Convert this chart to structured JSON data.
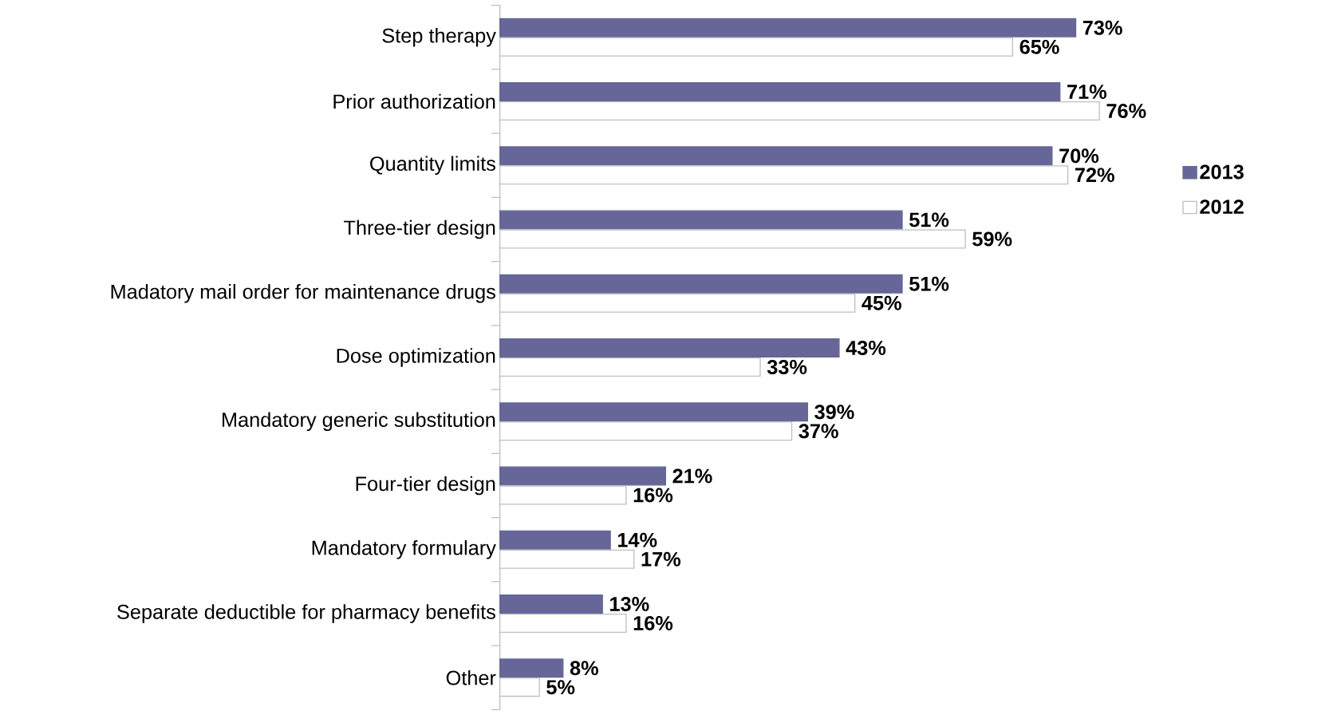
{
  "chart_data": {
    "type": "bar",
    "orientation": "horizontal",
    "categories": [
      "Step therapy",
      "Prior authorization",
      "Quantity limits",
      "Three-tier design",
      "Madatory mail order for maintenance drugs",
      "Dose optimization",
      "Mandatory generic substitution",
      "Four-tier design",
      "Mandatory formulary",
      "Separate deductible for pharmacy benefits",
      "Other"
    ],
    "series": [
      {
        "name": "2013",
        "color": "#666699",
        "values": [
          73,
          71,
          70,
          51,
          51,
          43,
          39,
          21,
          14,
          13,
          8
        ],
        "value_labels": [
          "73%",
          "71%",
          "70%",
          "51%",
          "51%",
          "43%",
          "39%",
          "21%",
          "14%",
          "13%",
          "8%"
        ]
      },
      {
        "name": "2012",
        "color": "#ffffff",
        "values": [
          65,
          76,
          72,
          59,
          45,
          33,
          37,
          16,
          17,
          16,
          5
        ],
        "value_labels": [
          "65%",
          "76%",
          "72%",
          "59%",
          "45%",
          "33%",
          "37%",
          "16%",
          "17%",
          "16%",
          "5%"
        ]
      }
    ],
    "legend": "right"
  }
}
